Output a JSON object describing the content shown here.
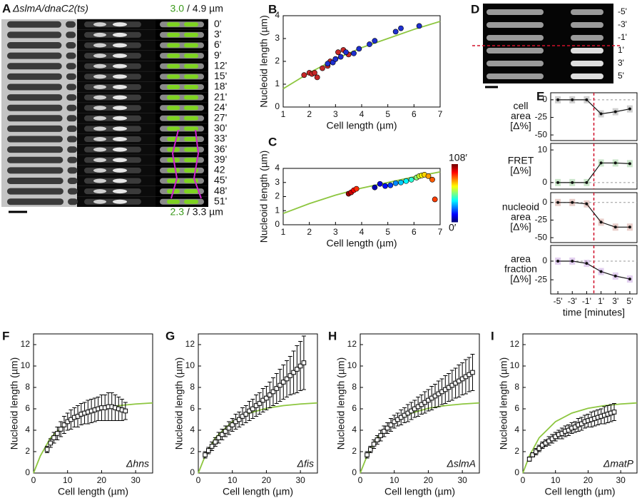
{
  "panel_labels": [
    "A",
    "B",
    "C",
    "D",
    "E",
    "F",
    "G",
    "H",
    "I"
  ],
  "panel_a": {
    "strain": "ΔslmA/dnaC2(ts)",
    "top_scale": {
      "nucleoid": "3.0",
      "cell": "/ 4.9 µm"
    },
    "bottom_scale": {
      "nucleoid": "2.3",
      "cell": "/ 3.3 µm"
    },
    "times": [
      "0'",
      "3'",
      "6'",
      "9'",
      "12'",
      "15'",
      "18'",
      "21'",
      "24'",
      "27'",
      "30'",
      "33'",
      "36'",
      "39'",
      "42",
      "45'",
      "48'",
      "51'"
    ]
  },
  "panel_d": {
    "times": [
      "-5'",
      "-3'",
      "-1'",
      "1'",
      "3'",
      "5'"
    ]
  },
  "chart_data": [
    {
      "type": "scatter",
      "xlabel": "Cell length (µm)",
      "ylabel": "Nucleoid length (µm)",
      "xlim": [
        1,
        7
      ],
      "ylim": [
        0,
        4
      ],
      "xticks": [
        1,
        2,
        3,
        4,
        5,
        6,
        7
      ],
      "yticks": [
        0,
        1,
        2,
        3,
        4
      ],
      "series": [
        {
          "color": "#c62828",
          "x": [
            1.8,
            2.0,
            2.1,
            2.2,
            2.3,
            2.5,
            2.7,
            2.8,
            3.0,
            3.1,
            3.3,
            3.5
          ],
          "values": [
            1.4,
            1.5,
            1.45,
            1.5,
            1.3,
            1.7,
            1.8,
            2.0,
            2.1,
            2.4,
            2.5,
            2.3
          ]
        },
        {
          "color": "#1e2fd0",
          "x": [
            2.7,
            2.9,
            3.0,
            3.2,
            3.4,
            3.7,
            3.9,
            4.3,
            4.5,
            5.3,
            5.5,
            6.2
          ],
          "values": [
            1.9,
            1.95,
            2.1,
            2.2,
            2.4,
            2.35,
            2.55,
            2.75,
            2.9,
            3.3,
            3.45,
            3.55
          ]
        }
      ],
      "fit": {
        "color": "#8dc63f",
        "x": [
          1,
          2,
          3,
          4,
          5,
          6,
          7
        ],
        "values": [
          0.8,
          1.5,
          2.1,
          2.6,
          3.0,
          3.4,
          3.75
        ]
      }
    },
    {
      "type": "scatter",
      "xlabel": "Cell length (µm)",
      "ylabel": "Nucleoid length (µm)",
      "xlim": [
        1,
        7
      ],
      "ylim": [
        0,
        4
      ],
      "xticks": [
        1,
        2,
        3,
        4,
        5,
        6,
        7
      ],
      "yticks": [
        0,
        1,
        2,
        3,
        4
      ],
      "series": [
        {
          "x": [
            3.5,
            3.6,
            3.7,
            3.8,
            4.5,
            4.7,
            4.9,
            5.1,
            5.3,
            5.5,
            5.7,
            5.9,
            6.1,
            6.2,
            6.3,
            6.4,
            6.55,
            6.7,
            6.8
          ],
          "values": [
            2.2,
            2.3,
            2.45,
            2.55,
            2.65,
            2.9,
            2.75,
            2.8,
            2.95,
            3.0,
            3.1,
            3.2,
            3.35,
            3.45,
            3.5,
            3.55,
            3.45,
            3.2,
            1.8
          ],
          "time": [
            105,
            100,
            95,
            90,
            5,
            10,
            15,
            20,
            28,
            35,
            40,
            45,
            55,
            62,
            68,
            72,
            78,
            85,
            88
          ]
        }
      ],
      "colorbar": {
        "range": [
          0,
          108
        ],
        "labels": [
          {
            "value": 0,
            "label": "0′"
          },
          {
            "value": 108,
            "label": "108′"
          }
        ]
      },
      "fit": {
        "color": "#8dc63f",
        "x": [
          1,
          2,
          3,
          4,
          5,
          6,
          7
        ],
        "values": [
          0.8,
          1.5,
          2.1,
          2.6,
          3.0,
          3.4,
          3.75
        ]
      }
    },
    {
      "type": "line",
      "xlabel": "time [minutes]",
      "x": [
        -5,
        -3,
        -1,
        1,
        3,
        5
      ],
      "xlim": [
        -6,
        6
      ],
      "xticks": [
        {
          "value": -5,
          "label": "-5'"
        },
        {
          "value": -3,
          "label": "-3'"
        },
        {
          "value": -1,
          "label": "-1'"
        },
        {
          "value": 1,
          "label": "1'"
        },
        {
          "value": 3,
          "label": "3'"
        },
        {
          "value": 5,
          "label": "5'"
        }
      ],
      "event_x": 0,
      "subplots": [
        {
          "ylabel_lines": [
            "cell",
            "area",
            "[Δ%]"
          ],
          "ylim": [
            -58,
            10
          ],
          "yticks": [
            -50,
            -25,
            0
          ],
          "color": "#444444",
          "values": [
            0,
            0,
            0,
            -20,
            -17,
            -13
          ]
        },
        {
          "ylabel_lines": [
            "FRET",
            "[Δ%]"
          ],
          "ylim": [
            -2,
            12
          ],
          "yticks": [
            0,
            10
          ],
          "color": "#2e9b2e",
          "values": [
            0,
            0,
            0,
            6,
            6,
            5.8
          ]
        },
        {
          "ylabel_lines": [
            "nucleoid",
            "area",
            "[Δ%]"
          ],
          "ylim": [
            -57,
            14
          ],
          "yticks": [
            -50,
            -25,
            0
          ],
          "color": "#a33a2a",
          "values": [
            0,
            0,
            -2,
            -28,
            -35,
            -35
          ]
        },
        {
          "ylabel_lines": [
            "area",
            "fraction",
            "[Δ%]"
          ],
          "ylim": [
            -44,
            21
          ],
          "yticks": [
            -25,
            0
          ],
          "color": "#8a3fc0",
          "values": [
            0,
            0,
            -3,
            -14,
            -20,
            -24
          ]
        }
      ]
    },
    {
      "type": "errorbar",
      "annotation": "Δhns",
      "xlabel": "Cell length (µm)",
      "ylabel": "Nucleoid length (µm)",
      "xlim": [
        0,
        35
      ],
      "ylim": [
        0,
        13
      ],
      "xticks": [
        0,
        10,
        20,
        30
      ],
      "yticks": [
        0,
        2,
        4,
        6,
        8,
        10,
        12
      ],
      "series": [
        {
          "color": "#000000",
          "x": [
            4,
            5,
            6,
            7,
            8,
            9,
            10,
            11,
            12,
            13,
            14,
            15,
            16,
            17,
            18,
            19,
            20,
            21,
            22,
            23,
            24,
            25,
            26,
            27
          ],
          "values": [
            2.2,
            2.8,
            3.3,
            3.7,
            4.1,
            4.5,
            4.8,
            5.0,
            5.2,
            5.3,
            5.5,
            5.6,
            5.7,
            5.8,
            5.9,
            6.0,
            6.1,
            6.1,
            6.2,
            6.2,
            6.1,
            6.0,
            5.9,
            5.8
          ],
          "errors": [
            0.3,
            0.4,
            0.5,
            0.6,
            0.7,
            0.8,
            0.8,
            0.9,
            0.9,
            1.0,
            1.0,
            1.0,
            1.1,
            1.1,
            1.1,
            1.1,
            1.2,
            1.2,
            1.3,
            1.3,
            1.2,
            1.1,
            1.0,
            0.8
          ]
        }
      ],
      "fit": {
        "color": "#8dc63f",
        "x": [
          0,
          2,
          5,
          10,
          15,
          20,
          25,
          30,
          35
        ],
        "values": [
          0,
          1.6,
          3.3,
          4.8,
          5.6,
          6.05,
          6.3,
          6.45,
          6.55
        ]
      }
    },
    {
      "type": "errorbar",
      "annotation": "Δfis",
      "xlabel": "Cell length (µm)",
      "ylabel": "Nucleoid length (µm)",
      "xlim": [
        0,
        35
      ],
      "ylim": [
        0,
        13
      ],
      "xticks": [
        0,
        10,
        20,
        30
      ],
      "yticks": [
        0,
        2,
        4,
        6,
        8,
        10,
        12
      ],
      "series": [
        {
          "color": "#000000",
          "x": [
            2,
            3,
            4,
            5,
            6,
            7,
            8,
            9,
            10,
            11,
            12,
            13,
            14,
            15,
            16,
            17,
            18,
            19,
            20,
            21,
            22,
            23,
            24,
            25,
            26,
            27,
            28,
            29,
            30,
            31
          ],
          "values": [
            1.7,
            2.1,
            2.5,
            2.9,
            3.3,
            3.6,
            3.9,
            4.2,
            4.5,
            4.8,
            5.0,
            5.3,
            5.5,
            5.8,
            6.0,
            6.3,
            6.5,
            6.8,
            7.0,
            7.3,
            7.6,
            7.9,
            8.2,
            8.5,
            8.8,
            9.1,
            9.4,
            9.7,
            10.0,
            10.3
          ],
          "errors": [
            0.3,
            0.3,
            0.4,
            0.4,
            0.5,
            0.5,
            0.5,
            0.6,
            0.6,
            0.7,
            0.7,
            0.8,
            0.8,
            0.9,
            0.9,
            1.0,
            1.0,
            1.1,
            1.1,
            1.2,
            1.3,
            1.4,
            1.5,
            1.6,
            1.7,
            1.8,
            2.0,
            2.2,
            2.3,
            2.5
          ]
        }
      ],
      "fit": {
        "color": "#8dc63f",
        "x": [
          0,
          2,
          5,
          10,
          15,
          20,
          25,
          30,
          35
        ],
        "values": [
          0,
          1.6,
          3.3,
          4.8,
          5.6,
          6.05,
          6.3,
          6.45,
          6.55
        ]
      }
    },
    {
      "type": "errorbar",
      "annotation": "ΔslmA",
      "xlabel": "Cell length (µm)",
      "ylabel": "Nucleoid length (µm)",
      "xlim": [
        0,
        35
      ],
      "ylim": [
        0,
        13
      ],
      "xticks": [
        0,
        10,
        20,
        30
      ],
      "yticks": [
        0,
        2,
        4,
        6,
        8,
        10,
        12
      ],
      "series": [
        {
          "color": "#000000",
          "x": [
            2,
            3,
            4,
            5,
            6,
            7,
            8,
            9,
            10,
            11,
            12,
            13,
            14,
            15,
            16,
            17,
            18,
            19,
            20,
            21,
            22,
            23,
            24,
            25,
            26,
            27,
            28,
            29,
            30,
            31,
            32,
            33
          ],
          "values": [
            1.7,
            2.2,
            2.7,
            3.1,
            3.5,
            3.9,
            4.2,
            4.5,
            4.8,
            5.0,
            5.2,
            5.4,
            5.6,
            5.8,
            6.0,
            6.2,
            6.4,
            6.6,
            6.8,
            7.0,
            7.2,
            7.4,
            7.6,
            7.8,
            8.0,
            8.2,
            8.4,
            8.6,
            8.8,
            9.0,
            9.2,
            9.4
          ],
          "errors": [
            0.3,
            0.3,
            0.4,
            0.4,
            0.5,
            0.5,
            0.5,
            0.6,
            0.6,
            0.6,
            0.7,
            0.7,
            0.8,
            0.8,
            0.8,
            0.9,
            0.9,
            1.0,
            1.0,
            1.1,
            1.1,
            1.2,
            1.2,
            1.3,
            1.3,
            1.4,
            1.4,
            1.5,
            1.5,
            1.6,
            1.6,
            1.7
          ]
        }
      ],
      "fit": {
        "color": "#8dc63f",
        "x": [
          0,
          2,
          5,
          10,
          15,
          20,
          25,
          30,
          35
        ],
        "values": [
          0,
          1.6,
          3.3,
          4.8,
          5.6,
          6.05,
          6.3,
          6.45,
          6.55
        ]
      }
    },
    {
      "type": "errorbar",
      "annotation": "ΔmatP",
      "xlabel": "Cell length (µm)",
      "ylabel": "Nucleoid length (µm)",
      "xlim": [
        0,
        35
      ],
      "ylim": [
        0,
        13
      ],
      "xticks": [
        0,
        10,
        20,
        30
      ],
      "yticks": [
        0,
        2,
        4,
        6,
        8,
        10,
        12
      ],
      "series": [
        {
          "color": "#000000",
          "x": [
            2,
            3,
            4,
            5,
            6,
            7,
            8,
            9,
            10,
            11,
            12,
            13,
            14,
            15,
            16,
            17,
            18,
            19,
            20,
            21,
            22,
            23,
            24,
            25,
            26,
            27,
            28
          ],
          "values": [
            1.3,
            1.7,
            2.0,
            2.3,
            2.6,
            2.8,
            3.0,
            3.2,
            3.4,
            3.6,
            3.7,
            3.9,
            4.0,
            4.2,
            4.3,
            4.5,
            4.6,
            4.8,
            4.9,
            5.0,
            5.1,
            5.2,
            5.3,
            5.4,
            5.5,
            5.6,
            5.7
          ],
          "errors": [
            0.2,
            0.2,
            0.3,
            0.3,
            0.3,
            0.3,
            0.4,
            0.4,
            0.4,
            0.4,
            0.5,
            0.5,
            0.5,
            0.5,
            0.5,
            0.6,
            0.6,
            0.6,
            0.6,
            0.7,
            0.7,
            0.7,
            0.7,
            0.8,
            0.8,
            0.8,
            0.8
          ]
        }
      ],
      "fit": {
        "color": "#8dc63f",
        "x": [
          0,
          2,
          5,
          10,
          15,
          20,
          25,
          30,
          35
        ],
        "values": [
          0,
          1.6,
          3.3,
          4.8,
          5.6,
          6.05,
          6.3,
          6.45,
          6.55
        ]
      }
    }
  ]
}
